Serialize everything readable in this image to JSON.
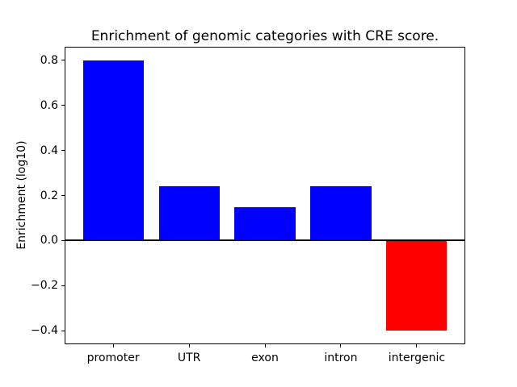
{
  "figure": {
    "background": "#ffffff",
    "text_color": "#000000",
    "spine_color": "#000000"
  },
  "chart_data": {
    "type": "bar",
    "title": "Enrichment of genomic categories with CRE score.",
    "xlabel": "",
    "ylabel": "Enrichment (log10)",
    "categories": [
      "promoter",
      "UTR",
      "exon",
      "intron",
      "intergenic"
    ],
    "values": [
      0.8,
      0.24,
      0.15,
      0.24,
      -0.4
    ],
    "bar_colors": [
      "#0000ff",
      "#0000ff",
      "#0000ff",
      "#0000ff",
      "#ff0000"
    ],
    "positive_color": "#0000ff",
    "negative_color": "#ff0000",
    "yticks": [
      {
        "value": 0.8,
        "label": "0.8"
      },
      {
        "value": 0.6,
        "label": "0.6"
      },
      {
        "value": 0.4,
        "label": "0.4"
      },
      {
        "value": 0.2,
        "label": "0.2"
      },
      {
        "value": 0.0,
        "label": "0.0"
      },
      {
        "value": -0.2,
        "label": "−0.2"
      },
      {
        "value": -0.4,
        "label": "−0.4"
      }
    ],
    "ylim": [
      -0.46,
      0.86
    ],
    "xlim": [
      -0.64,
      4.64
    ],
    "bar_width": 0.8,
    "zero_line": {
      "value": 0.0,
      "color": "#000000"
    },
    "grid": false,
    "legend": null
  }
}
